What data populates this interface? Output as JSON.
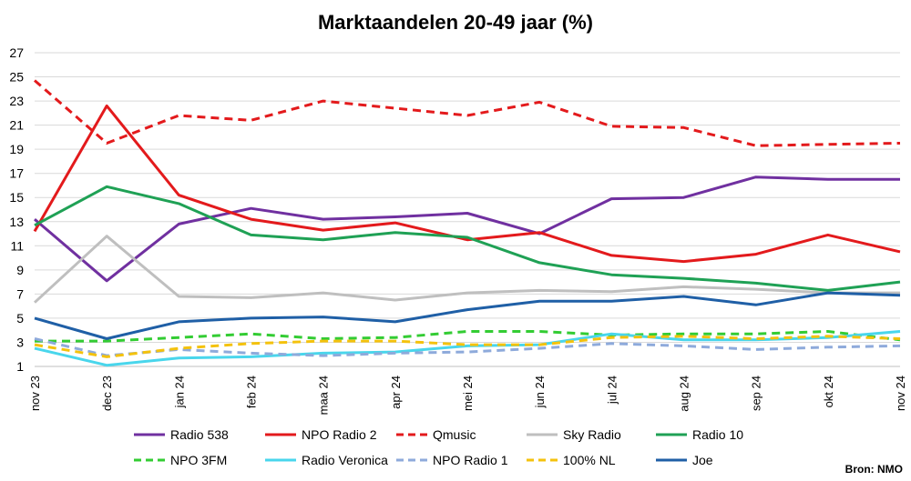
{
  "chart_data": {
    "type": "line",
    "title": "Marktaandelen 20-49 jaar (%)",
    "source": "Bron: NMO",
    "categories": [
      "nov 23",
      "dec 23",
      "jan 24",
      "feb 24",
      "maa 24",
      "apr 24",
      "mei 24",
      "jun 24",
      "jul 24",
      "aug 24",
      "sep 24",
      "okt 24",
      "nov 24"
    ],
    "ylim": [
      1,
      27
    ],
    "yticks": [
      1,
      3,
      5,
      7,
      9,
      11,
      13,
      15,
      17,
      19,
      21,
      23,
      25,
      27
    ],
    "grid": true,
    "legend_position": "bottom",
    "series": [
      {
        "name": "Radio 538",
        "color": "#7030a0",
        "dash": "solid",
        "values": [
          13.2,
          8.1,
          12.8,
          14.1,
          13.2,
          13.4,
          13.7,
          12.0,
          14.9,
          15.0,
          16.7,
          16.5,
          16.5
        ]
      },
      {
        "name": "NPO Radio 2",
        "color": "#e31a1c",
        "dash": "solid",
        "values": [
          12.2,
          22.6,
          15.2,
          13.2,
          12.3,
          12.9,
          11.5,
          12.1,
          10.2,
          9.7,
          10.3,
          11.9,
          10.5
        ]
      },
      {
        "name": "Qmusic",
        "color": "#e31a1c",
        "dash": "dashed",
        "values": [
          24.7,
          19.5,
          21.8,
          21.4,
          23.0,
          22.4,
          21.8,
          22.9,
          20.9,
          20.8,
          19.3,
          19.4,
          19.5
        ]
      },
      {
        "name": "Sky Radio",
        "color": "#bfbfbf",
        "dash": "solid",
        "values": [
          6.3,
          11.8,
          6.8,
          6.7,
          7.1,
          6.5,
          7.1,
          7.3,
          7.2,
          7.6,
          7.4,
          7.1,
          7.1
        ]
      },
      {
        "name": "Radio 10",
        "color": "#1fa155",
        "dash": "solid",
        "values": [
          12.7,
          15.9,
          14.5,
          11.9,
          11.5,
          12.1,
          11.7,
          9.6,
          8.6,
          8.3,
          7.9,
          7.3,
          8.0
        ]
      },
      {
        "name": "NPO 3FM",
        "color": "#33cc33",
        "dash": "dashed",
        "values": [
          3.1,
          3.1,
          3.4,
          3.7,
          3.3,
          3.4,
          3.9,
          3.9,
          3.6,
          3.7,
          3.7,
          3.9,
          3.2
        ]
      },
      {
        "name": "Radio Veronica",
        "color": "#49d6ec",
        "dash": "solid",
        "values": [
          2.5,
          1.1,
          1.7,
          1.8,
          2.1,
          2.2,
          2.7,
          2.8,
          3.7,
          3.2,
          3.2,
          3.4,
          3.9
        ]
      },
      {
        "name": "NPO Radio 1",
        "color": "#8eaadb",
        "dash": "dashed",
        "values": [
          3.3,
          1.9,
          2.4,
          2.1,
          1.9,
          2.1,
          2.2,
          2.5,
          2.9,
          2.7,
          2.4,
          2.6,
          2.7
        ]
      },
      {
        "name": "100% NL",
        "color": "#f4c20d",
        "dash": "dashed",
        "values": [
          2.8,
          1.8,
          2.5,
          2.9,
          3.1,
          3.1,
          2.8,
          2.8,
          3.4,
          3.5,
          3.3,
          3.5,
          3.3
        ]
      },
      {
        "name": "Joe",
        "color": "#1f5fa6",
        "dash": "solid",
        "values": [
          5.0,
          3.3,
          4.7,
          5.0,
          5.1,
          4.7,
          5.7,
          6.4,
          6.4,
          6.8,
          6.1,
          7.1,
          6.9
        ]
      }
    ]
  }
}
